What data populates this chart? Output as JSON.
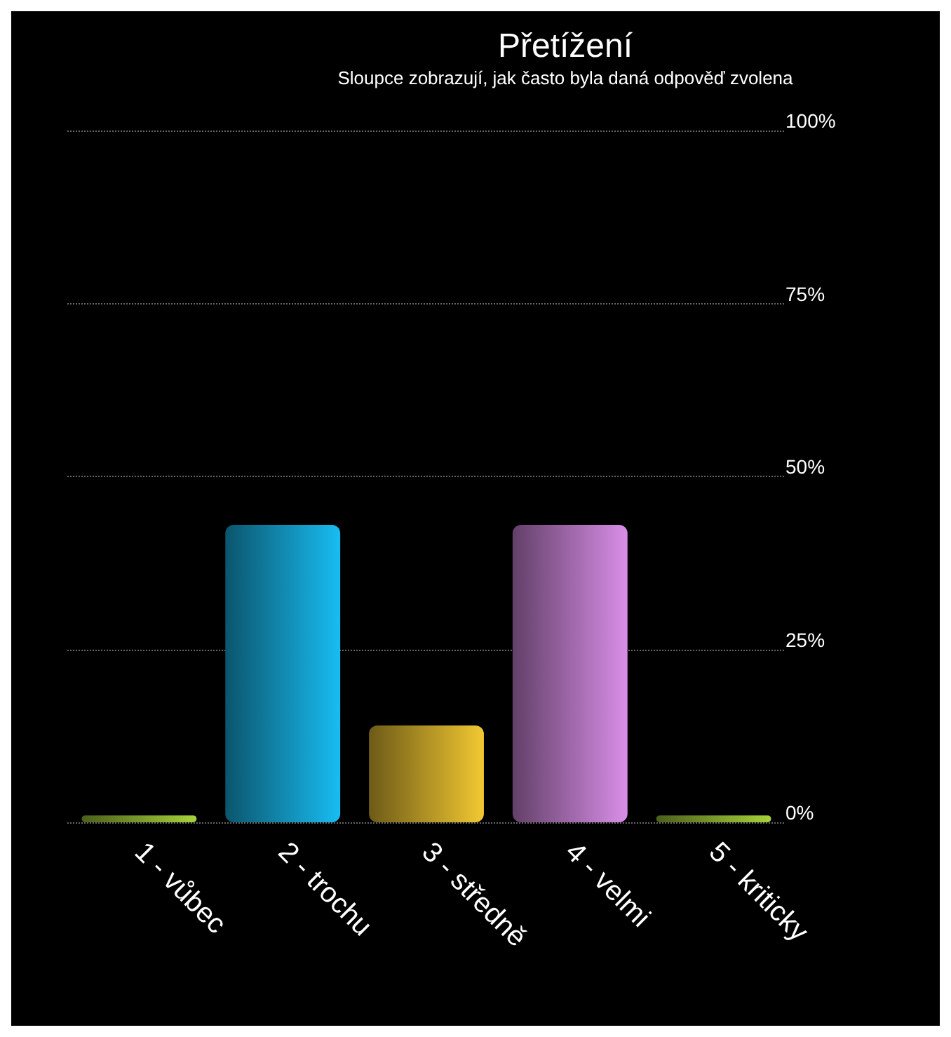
{
  "chart_data": {
    "type": "bar",
    "title": "Přetížení",
    "subtitle": "Sloupce zobrazují, jak často byla daná odpověď zvolena",
    "categories": [
      "1 - vůbec",
      "2 - trochu",
      "3 - středně",
      "4 - velmi",
      "5 - kriticky"
    ],
    "values": [
      1,
      43,
      14,
      43,
      1
    ],
    "colors": [
      "#a6d23a",
      "#18bdf2",
      "#f2c832",
      "#d98ee8",
      "#a6d23a"
    ],
    "ylim": [
      0,
      100
    ],
    "yticks": [
      {
        "value": 0,
        "label": "0%"
      },
      {
        "value": 25,
        "label": "25%"
      },
      {
        "value": 50,
        "label": "50%"
      },
      {
        "value": 75,
        "label": "75%"
      },
      {
        "value": 100,
        "label": "100%"
      }
    ],
    "grid": "y"
  }
}
